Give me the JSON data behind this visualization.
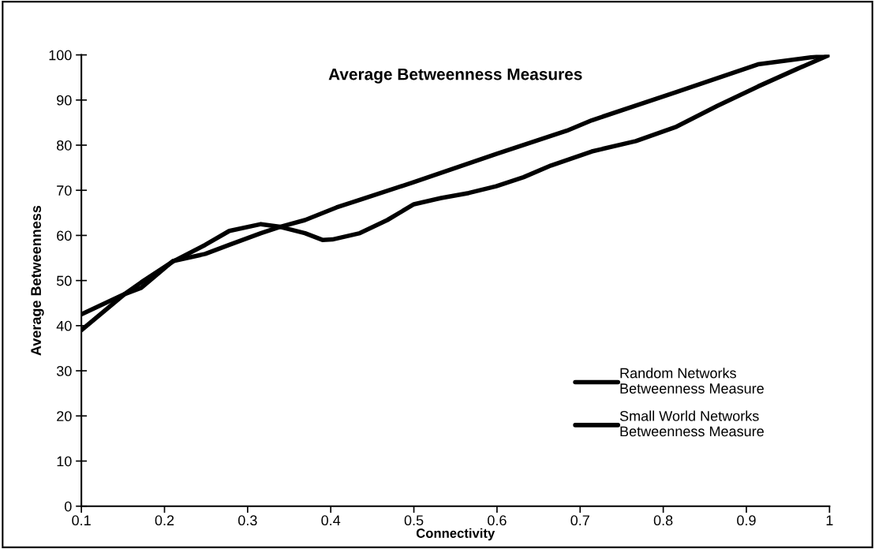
{
  "chart_data": {
    "type": "line",
    "title": "Average Betweenness Measures",
    "xlabel": "Connectivity",
    "ylabel": "Average Betweenness",
    "series": [
      {
        "name": "Random Networks\nBetweenness Measure",
        "color": "#000000",
        "x": [
          0.1,
          0.152,
          0.172,
          0.21,
          0.249,
          0.278,
          0.316,
          0.339,
          0.369,
          0.407,
          0.5,
          0.6,
          0.684,
          0.714,
          0.816,
          0.914,
          1.0
        ],
        "values": [
          42.5,
          47,
          48.4,
          54.3,
          55.9,
          57.9,
          60.5,
          61.9,
          63.4,
          66.2,
          71.8,
          78.1,
          83.2,
          85.5,
          91.8,
          97.9,
          100
        ]
      },
      {
        "name": "Small World Networks\nBetweenness Measure",
        "color": "#000000",
        "x": [
          0.1,
          0.152,
          0.172,
          0.21,
          0.249,
          0.278,
          0.316,
          0.339,
          0.369,
          0.39,
          0.402,
          0.435,
          0.468,
          0.5,
          0.533,
          0.566,
          0.599,
          0.632,
          0.665,
          0.714,
          0.767,
          0.816,
          0.865,
          0.914,
          0.96,
          1.0
        ],
        "values": [
          39,
          47,
          49.6,
          54.2,
          57.9,
          61,
          62.5,
          61.9,
          60.5,
          59.0,
          59.1,
          60.5,
          63.4,
          66.9,
          68.3,
          69.4,
          70.9,
          72.9,
          75.5,
          78.6,
          80.9,
          84.1,
          88.7,
          93.0,
          96.8,
          100
        ]
      }
    ],
    "xlim": [
      0.1,
      1
    ],
    "xticks": [
      0.1,
      0.2,
      0.3,
      0.4,
      0.5,
      0.6,
      0.7,
      0.8,
      0.9,
      1
    ],
    "ylim": [
      0,
      100
    ],
    "yticks": [
      0,
      10,
      20,
      30,
      40,
      50,
      60,
      70,
      80,
      90,
      100
    ],
    "grid": false,
    "legend": "bottom right",
    "marker": "none",
    "line_style": "solid"
  }
}
